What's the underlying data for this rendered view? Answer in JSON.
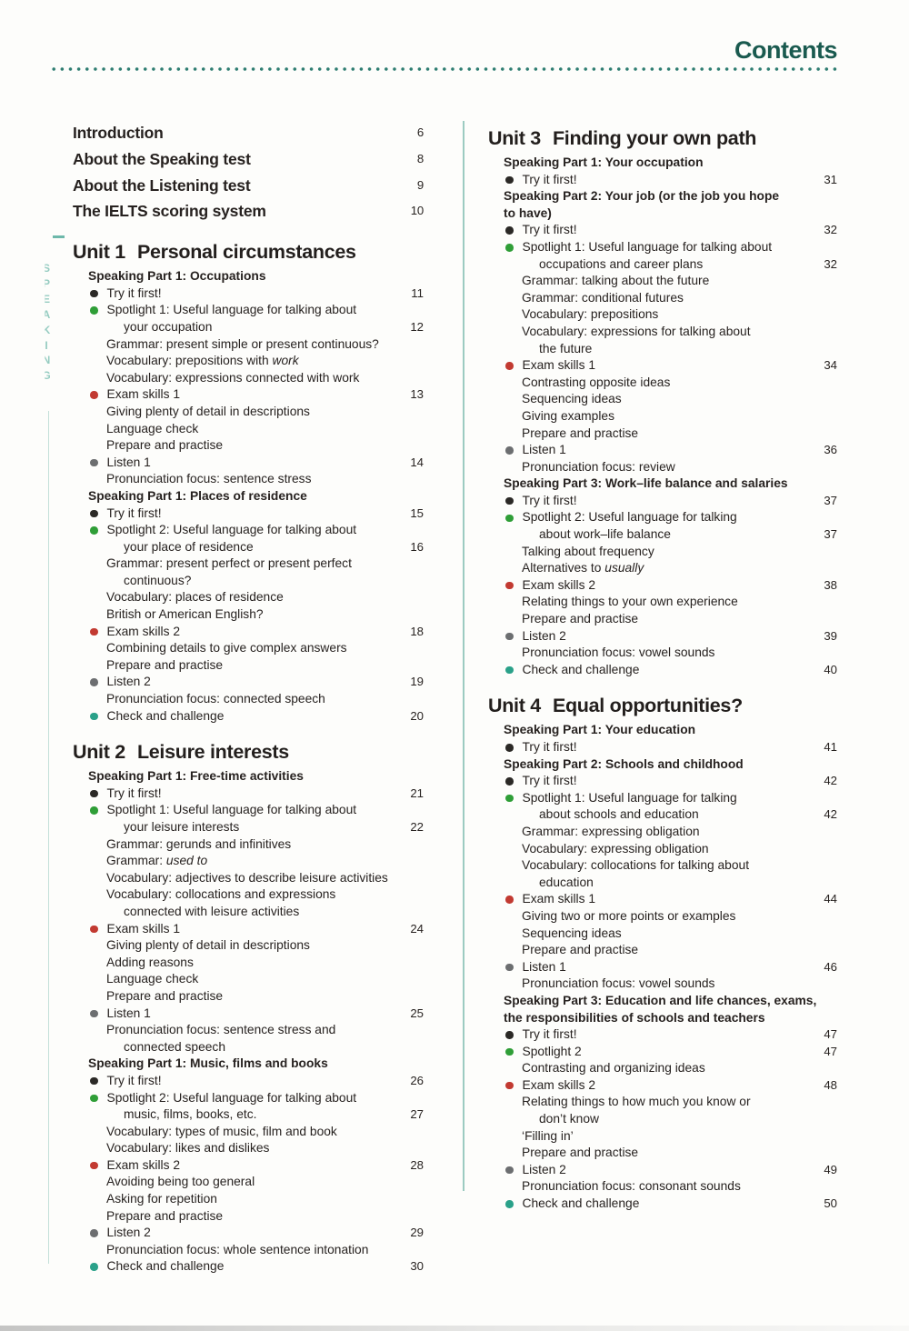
{
  "header": {
    "title": "Contents"
  },
  "margin_label": "SPEAKING",
  "colors": {
    "title_teal": "#1a5a4f",
    "dotted_rule": "#2e7d71",
    "separator": "#9ccbc1",
    "bullets": {
      "try": "#2b2926",
      "spotlight": "#2f9e37",
      "exam": "#c23a31",
      "listen": "#6c6e70",
      "check": "#2aa189"
    }
  },
  "front_matter": [
    {
      "label": "Introduction",
      "page": "6"
    },
    {
      "label": "About the Speaking test",
      "page": "8"
    },
    {
      "label": "About the Listening test",
      "page": "9"
    },
    {
      "label": "The IELTS scoring system",
      "page": "10"
    }
  ],
  "columns": {
    "left": [
      {
        "number": "Unit 1",
        "title": "Personal circumstances",
        "blocks": [
          {
            "type": "heading",
            "lines": [
              "Speaking Part 1: Occupations"
            ]
          },
          {
            "type": "item",
            "bullet": "try",
            "lines": [
              "Try it first!"
            ],
            "page": "11"
          },
          {
            "type": "item",
            "bullet": "spotlight",
            "lines": [
              "Spotlight 1: Useful language for talking about",
              "your occupation"
            ],
            "page": "12"
          },
          {
            "type": "item",
            "bullet": null,
            "lines": [
              "Grammar: present simple or present continuous?"
            ]
          },
          {
            "type": "item",
            "bullet": null,
            "lines": [
              "Vocabulary: prepositions with"
            ],
            "italic": "work"
          },
          {
            "type": "item",
            "bullet": null,
            "lines": [
              "Vocabulary: expressions connected with work"
            ]
          },
          {
            "type": "item",
            "bullet": "exam",
            "lines": [
              "Exam skills 1"
            ],
            "page": "13"
          },
          {
            "type": "item",
            "bullet": null,
            "lines": [
              "Giving plenty of detail in descriptions"
            ]
          },
          {
            "type": "item",
            "bullet": null,
            "lines": [
              "Language check"
            ]
          },
          {
            "type": "item",
            "bullet": null,
            "lines": [
              "Prepare and practise"
            ]
          },
          {
            "type": "item",
            "bullet": "listen",
            "lines": [
              "Listen 1"
            ],
            "page": "14"
          },
          {
            "type": "item",
            "bullet": null,
            "lines": [
              "Pronunciation focus: sentence stress"
            ]
          },
          {
            "type": "heading",
            "lines": [
              "Speaking Part 1: Places of residence"
            ]
          },
          {
            "type": "item",
            "bullet": "try",
            "lines": [
              "Try it first!"
            ],
            "page": "15"
          },
          {
            "type": "item",
            "bullet": "spotlight",
            "lines": [
              "Spotlight 2: Useful language for talking about",
              "your place of residence"
            ],
            "page": "16"
          },
          {
            "type": "item",
            "bullet": null,
            "lines": [
              "Grammar: present perfect or present perfect",
              "continuous?"
            ]
          },
          {
            "type": "item",
            "bullet": null,
            "lines": [
              "Vocabulary: places of residence"
            ]
          },
          {
            "type": "item",
            "bullet": null,
            "lines": [
              "British or American English?"
            ]
          },
          {
            "type": "item",
            "bullet": "exam",
            "lines": [
              "Exam skills 2"
            ],
            "page": "18"
          },
          {
            "type": "item",
            "bullet": null,
            "lines": [
              "Combining details to give complex answers"
            ]
          },
          {
            "type": "item",
            "bullet": null,
            "lines": [
              "Prepare and practise"
            ]
          },
          {
            "type": "item",
            "bullet": "listen",
            "lines": [
              "Listen 2"
            ],
            "page": "19"
          },
          {
            "type": "item",
            "bullet": null,
            "lines": [
              "Pronunciation focus: connected speech"
            ]
          },
          {
            "type": "item",
            "bullet": "check",
            "lines": [
              "Check and challenge"
            ],
            "page": "20"
          }
        ]
      },
      {
        "number": "Unit 2",
        "title": "Leisure interests",
        "blocks": [
          {
            "type": "heading",
            "lines": [
              "Speaking Part 1: Free-time activities"
            ]
          },
          {
            "type": "item",
            "bullet": "try",
            "lines": [
              "Try it first!"
            ],
            "page": "21"
          },
          {
            "type": "item",
            "bullet": "spotlight",
            "lines": [
              "Spotlight 1: Useful language for talking about",
              "your leisure interests"
            ],
            "page": "22"
          },
          {
            "type": "item",
            "bullet": null,
            "lines": [
              "Grammar: gerunds and infinitives"
            ]
          },
          {
            "type": "item",
            "bullet": null,
            "lines": [
              "Grammar:"
            ],
            "italic": "used to"
          },
          {
            "type": "item",
            "bullet": null,
            "lines": [
              "Vocabulary: adjectives to describe leisure activities"
            ]
          },
          {
            "type": "item",
            "bullet": null,
            "lines": [
              "Vocabulary: collocations and expressions",
              "connected with leisure activities"
            ]
          },
          {
            "type": "item",
            "bullet": "exam",
            "lines": [
              "Exam skills 1"
            ],
            "page": "24"
          },
          {
            "type": "item",
            "bullet": null,
            "lines": [
              "Giving plenty of detail in descriptions"
            ]
          },
          {
            "type": "item",
            "bullet": null,
            "lines": [
              "Adding reasons"
            ]
          },
          {
            "type": "item",
            "bullet": null,
            "lines": [
              "Language check"
            ]
          },
          {
            "type": "item",
            "bullet": null,
            "lines": [
              "Prepare and practise"
            ]
          },
          {
            "type": "item",
            "bullet": "listen",
            "lines": [
              "Listen 1"
            ],
            "page": "25"
          },
          {
            "type": "item",
            "bullet": null,
            "lines": [
              "Pronunciation focus: sentence stress and",
              "connected speech"
            ]
          },
          {
            "type": "heading",
            "lines": [
              "Speaking Part 1: Music, films and books"
            ]
          },
          {
            "type": "item",
            "bullet": "try",
            "lines": [
              "Try it first!"
            ],
            "page": "26"
          },
          {
            "type": "item",
            "bullet": "spotlight",
            "lines": [
              "Spotlight 2: Useful language for talking about",
              "music, films, books, etc."
            ],
            "page": "27"
          },
          {
            "type": "item",
            "bullet": null,
            "lines": [
              "Vocabulary: types of music, film and book"
            ]
          },
          {
            "type": "item",
            "bullet": null,
            "lines": [
              "Vocabulary: likes and dislikes"
            ]
          },
          {
            "type": "item",
            "bullet": "exam",
            "lines": [
              "Exam skills 2"
            ],
            "page": "28"
          },
          {
            "type": "item",
            "bullet": null,
            "lines": [
              "Avoiding being too general"
            ]
          },
          {
            "type": "item",
            "bullet": null,
            "lines": [
              "Asking for repetition"
            ]
          },
          {
            "type": "item",
            "bullet": null,
            "lines": [
              "Prepare and practise"
            ]
          },
          {
            "type": "item",
            "bullet": "listen",
            "lines": [
              "Listen 2"
            ],
            "page": "29"
          },
          {
            "type": "item",
            "bullet": null,
            "lines": [
              "Pronunciation focus: whole sentence intonation"
            ]
          },
          {
            "type": "item",
            "bullet": "check",
            "lines": [
              "Check and challenge"
            ],
            "page": "30"
          }
        ]
      }
    ],
    "right": [
      {
        "number": "Unit 3",
        "title": "Finding your own path",
        "blocks": [
          {
            "type": "heading",
            "lines": [
              "Speaking Part 1: Your occupation"
            ]
          },
          {
            "type": "item",
            "bullet": "try",
            "lines": [
              "Try it first!"
            ],
            "page": "31"
          },
          {
            "type": "heading",
            "lines": [
              "Speaking Part 2: Your job (or the job you hope",
              "to have)"
            ]
          },
          {
            "type": "item",
            "bullet": "try",
            "lines": [
              "Try it first!"
            ],
            "page": "32"
          },
          {
            "type": "item",
            "bullet": "spotlight",
            "lines": [
              "Spotlight 1: Useful language for talking about",
              "occupations and career plans"
            ],
            "page": "32"
          },
          {
            "type": "item",
            "bullet": null,
            "lines": [
              "Grammar: talking about the future"
            ]
          },
          {
            "type": "item",
            "bullet": null,
            "lines": [
              "Grammar: conditional futures"
            ]
          },
          {
            "type": "item",
            "bullet": null,
            "lines": [
              "Vocabulary: prepositions"
            ]
          },
          {
            "type": "item",
            "bullet": null,
            "lines": [
              "Vocabulary: expressions for talking about",
              "the future"
            ]
          },
          {
            "type": "item",
            "bullet": "exam",
            "lines": [
              "Exam skills 1"
            ],
            "page": "34"
          },
          {
            "type": "item",
            "bullet": null,
            "lines": [
              "Contrasting opposite ideas"
            ]
          },
          {
            "type": "item",
            "bullet": null,
            "lines": [
              "Sequencing ideas"
            ]
          },
          {
            "type": "item",
            "bullet": null,
            "lines": [
              "Giving examples"
            ]
          },
          {
            "type": "item",
            "bullet": null,
            "lines": [
              "Prepare and practise"
            ]
          },
          {
            "type": "item",
            "bullet": "listen",
            "lines": [
              "Listen 1"
            ],
            "page": "36"
          },
          {
            "type": "item",
            "bullet": null,
            "lines": [
              "Pronunciation focus: review"
            ]
          },
          {
            "type": "heading",
            "lines": [
              "Speaking Part 3: Work–life balance and salaries"
            ]
          },
          {
            "type": "item",
            "bullet": "try",
            "lines": [
              "Try it first!"
            ],
            "page": "37"
          },
          {
            "type": "item",
            "bullet": "spotlight",
            "lines": [
              "Spotlight 2: Useful language for talking",
              "about work–life balance"
            ],
            "page": "37"
          },
          {
            "type": "item",
            "bullet": null,
            "lines": [
              "Talking about frequency"
            ]
          },
          {
            "type": "item",
            "bullet": null,
            "lines": [
              "Alternatives to"
            ],
            "italic": "usually"
          },
          {
            "type": "item",
            "bullet": "exam",
            "lines": [
              "Exam skills 2"
            ],
            "page": "38"
          },
          {
            "type": "item",
            "bullet": null,
            "lines": [
              "Relating things to your own experience"
            ]
          },
          {
            "type": "item",
            "bullet": null,
            "lines": [
              "Prepare and practise"
            ]
          },
          {
            "type": "item",
            "bullet": "listen",
            "lines": [
              "Listen 2"
            ],
            "page": "39"
          },
          {
            "type": "item",
            "bullet": null,
            "lines": [
              "Pronunciation focus: vowel sounds"
            ]
          },
          {
            "type": "item",
            "bullet": "check",
            "lines": [
              "Check and challenge"
            ],
            "page": "40"
          }
        ]
      },
      {
        "number": "Unit 4",
        "title": "Equal opportunities?",
        "blocks": [
          {
            "type": "heading",
            "lines": [
              "Speaking Part 1: Your education"
            ]
          },
          {
            "type": "item",
            "bullet": "try",
            "lines": [
              "Try it first!"
            ],
            "page": "41"
          },
          {
            "type": "heading",
            "lines": [
              "Speaking Part 2: Schools and childhood"
            ]
          },
          {
            "type": "item",
            "bullet": "try",
            "lines": [
              "Try it first!"
            ],
            "page": "42"
          },
          {
            "type": "item",
            "bullet": "spotlight",
            "lines": [
              "Spotlight 1: Useful language for talking",
              "about schools and education"
            ],
            "page": "42"
          },
          {
            "type": "item",
            "bullet": null,
            "lines": [
              "Grammar: expressing obligation"
            ]
          },
          {
            "type": "item",
            "bullet": null,
            "lines": [
              "Vocabulary: expressing obligation"
            ]
          },
          {
            "type": "item",
            "bullet": null,
            "lines": [
              "Vocabulary: collocations for talking about",
              "education"
            ]
          },
          {
            "type": "item",
            "bullet": "exam",
            "lines": [
              "Exam skills 1"
            ],
            "page": "44"
          },
          {
            "type": "item",
            "bullet": null,
            "lines": [
              "Giving two or more points or examples"
            ]
          },
          {
            "type": "item",
            "bullet": null,
            "lines": [
              "Sequencing ideas"
            ]
          },
          {
            "type": "item",
            "bullet": null,
            "lines": [
              "Prepare and practise"
            ]
          },
          {
            "type": "item",
            "bullet": "listen",
            "lines": [
              "Listen 1"
            ],
            "page": "46"
          },
          {
            "type": "item",
            "bullet": null,
            "lines": [
              "Pronunciation focus: vowel sounds"
            ]
          },
          {
            "type": "heading",
            "lines": [
              "Speaking Part 3: Education and life chances, exams,",
              "the responsibilities of schools and teachers"
            ]
          },
          {
            "type": "item",
            "bullet": "try",
            "lines": [
              "Try it first!"
            ],
            "page": "47"
          },
          {
            "type": "item",
            "bullet": "spotlight",
            "lines": [
              "Spotlight 2"
            ],
            "page": "47"
          },
          {
            "type": "item",
            "bullet": null,
            "lines": [
              "Contrasting and organizing ideas"
            ]
          },
          {
            "type": "item",
            "bullet": "exam",
            "lines": [
              "Exam skills 2"
            ],
            "page": "48"
          },
          {
            "type": "item",
            "bullet": null,
            "lines": [
              "Relating things to how much you know or",
              "don’t know"
            ]
          },
          {
            "type": "item",
            "bullet": null,
            "lines": [
              "‘Filling in’"
            ]
          },
          {
            "type": "item",
            "bullet": null,
            "lines": [
              "Prepare and practise"
            ]
          },
          {
            "type": "item",
            "bullet": "listen",
            "lines": [
              "Listen 2"
            ],
            "page": "49"
          },
          {
            "type": "item",
            "bullet": null,
            "lines": [
              "Pronunciation focus: consonant sounds"
            ]
          },
          {
            "type": "item",
            "bullet": "check",
            "lines": [
              "Check and challenge"
            ],
            "page": "50"
          }
        ]
      }
    ]
  }
}
